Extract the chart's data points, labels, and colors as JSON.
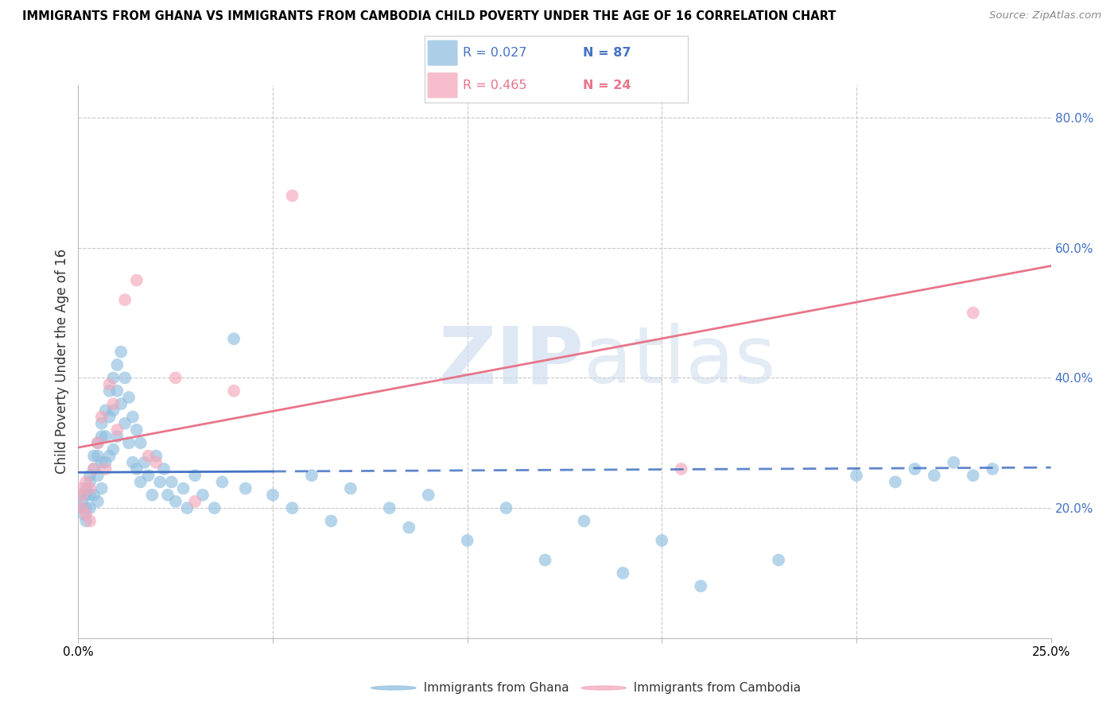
{
  "title": "IMMIGRANTS FROM GHANA VS IMMIGRANTS FROM CAMBODIA CHILD POVERTY UNDER THE AGE OF 16 CORRELATION CHART",
  "source": "Source: ZipAtlas.com",
  "ylabel": "Child Poverty Under the Age of 16",
  "x_min": 0.0,
  "x_max": 0.25,
  "y_min": 0.0,
  "y_max": 0.85,
  "ghana_color": "#90bfe0",
  "cambodia_color": "#f4a8bb",
  "ghana_R": 0.027,
  "ghana_N": 87,
  "cambodia_R": 0.465,
  "cambodia_N": 24,
  "ghana_line_color": "#4472c4",
  "cambodia_line_color": "#e8758a",
  "legend_label_ghana": "Immigrants from Ghana",
  "legend_label_cambodia": "Immigrants from Cambodia",
  "watermark_zip": "ZIP",
  "watermark_atlas": "atlas",
  "ghana_x": [
    0.0005,
    0.001,
    0.001,
    0.0015,
    0.002,
    0.002,
    0.002,
    0.002,
    0.003,
    0.003,
    0.003,
    0.003,
    0.004,
    0.004,
    0.004,
    0.005,
    0.005,
    0.005,
    0.005,
    0.006,
    0.006,
    0.006,
    0.006,
    0.007,
    0.007,
    0.007,
    0.008,
    0.008,
    0.008,
    0.009,
    0.009,
    0.009,
    0.01,
    0.01,
    0.01,
    0.011,
    0.011,
    0.012,
    0.012,
    0.013,
    0.013,
    0.014,
    0.014,
    0.015,
    0.015,
    0.016,
    0.016,
    0.017,
    0.018,
    0.019,
    0.02,
    0.021,
    0.022,
    0.023,
    0.024,
    0.025,
    0.027,
    0.028,
    0.03,
    0.032,
    0.035,
    0.037,
    0.04,
    0.043,
    0.05,
    0.055,
    0.06,
    0.065,
    0.07,
    0.08,
    0.085,
    0.09,
    0.1,
    0.11,
    0.12,
    0.13,
    0.14,
    0.15,
    0.16,
    0.18,
    0.2,
    0.21,
    0.215,
    0.22,
    0.225,
    0.23,
    0.235
  ],
  "ghana_y": [
    0.22,
    0.2,
    0.21,
    0.19,
    0.23,
    0.22,
    0.2,
    0.18,
    0.25,
    0.24,
    0.22,
    0.2,
    0.28,
    0.26,
    0.22,
    0.3,
    0.28,
    0.25,
    0.21,
    0.33,
    0.31,
    0.27,
    0.23,
    0.35,
    0.31,
    0.27,
    0.38,
    0.34,
    0.28,
    0.4,
    0.35,
    0.29,
    0.42,
    0.38,
    0.31,
    0.44,
    0.36,
    0.4,
    0.33,
    0.37,
    0.3,
    0.34,
    0.27,
    0.32,
    0.26,
    0.3,
    0.24,
    0.27,
    0.25,
    0.22,
    0.28,
    0.24,
    0.26,
    0.22,
    0.24,
    0.21,
    0.23,
    0.2,
    0.25,
    0.22,
    0.2,
    0.24,
    0.46,
    0.23,
    0.22,
    0.2,
    0.25,
    0.18,
    0.23,
    0.2,
    0.17,
    0.22,
    0.15,
    0.2,
    0.12,
    0.18,
    0.1,
    0.15,
    0.08,
    0.12,
    0.25,
    0.24,
    0.26,
    0.25,
    0.27,
    0.25,
    0.26
  ],
  "cambodia_x": [
    0.0005,
    0.001,
    0.001,
    0.002,
    0.002,
    0.003,
    0.003,
    0.004,
    0.005,
    0.006,
    0.007,
    0.008,
    0.009,
    0.01,
    0.012,
    0.015,
    0.018,
    0.02,
    0.025,
    0.03,
    0.04,
    0.055,
    0.155,
    0.23
  ],
  "cambodia_y": [
    0.23,
    0.22,
    0.2,
    0.24,
    0.19,
    0.23,
    0.18,
    0.26,
    0.3,
    0.34,
    0.26,
    0.39,
    0.36,
    0.32,
    0.52,
    0.55,
    0.28,
    0.27,
    0.4,
    0.21,
    0.38,
    0.68,
    0.26,
    0.5
  ]
}
